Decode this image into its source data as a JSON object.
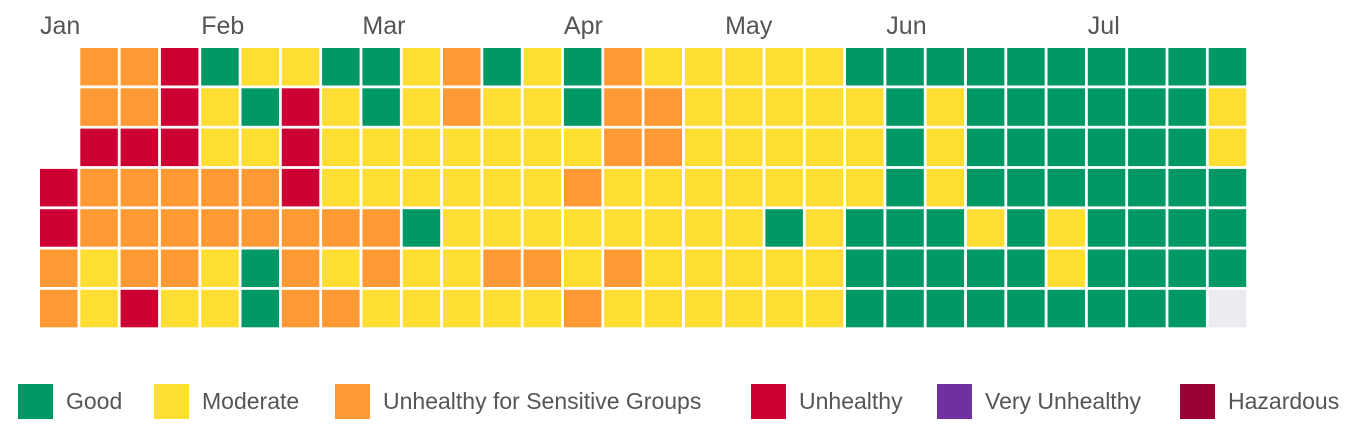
{
  "chart_data": {
    "type": "heatmap",
    "title": "",
    "layout": "calendar: one column per week, one row per weekday",
    "months": [
      "Jan",
      "Feb",
      "Mar",
      "Apr",
      "May",
      "Jun",
      "Jul"
    ],
    "month_start_week": [
      0,
      4,
      8,
      13,
      17,
      21,
      26
    ],
    "categories": [
      {
        "key": "G",
        "name": "Good",
        "color": "#009966"
      },
      {
        "key": "M",
        "name": "Moderate",
        "color": "#FFDE33"
      },
      {
        "key": "S",
        "name": "Unhealthy for Sensitive Groups",
        "color": "#FF9933"
      },
      {
        "key": "U",
        "name": "Unhealthy",
        "color": "#CC0033"
      },
      {
        "key": "V",
        "name": "Very Unhealthy",
        "color": "#7030A0"
      },
      {
        "key": "H",
        "name": "Hazardous",
        "color": "#990033"
      }
    ],
    "no_data_color": "#EBECEF",
    "weeks": [
      [
        "",
        "",
        "",
        "U",
        "U",
        "S",
        "S"
      ],
      [
        "S",
        "S",
        "U",
        "S",
        "S",
        "M",
        "M"
      ],
      [
        "S",
        "S",
        "U",
        "S",
        "S",
        "S",
        "U"
      ],
      [
        "U",
        "U",
        "U",
        "S",
        "S",
        "S",
        "M"
      ],
      [
        "G",
        "M",
        "M",
        "S",
        "S",
        "M",
        "M"
      ],
      [
        "M",
        "G",
        "M",
        "S",
        "S",
        "G",
        "G"
      ],
      [
        "M",
        "U",
        "U",
        "U",
        "S",
        "S",
        "S"
      ],
      [
        "G",
        "M",
        "M",
        "M",
        "S",
        "M",
        "S"
      ],
      [
        "G",
        "G",
        "M",
        "M",
        "S",
        "S",
        "M"
      ],
      [
        "M",
        "M",
        "M",
        "M",
        "G",
        "M",
        "M"
      ],
      [
        "S",
        "S",
        "M",
        "M",
        "M",
        "M",
        "M"
      ],
      [
        "G",
        "M",
        "M",
        "M",
        "M",
        "S",
        "M"
      ],
      [
        "M",
        "M",
        "M",
        "M",
        "M",
        "S",
        "M"
      ],
      [
        "G",
        "G",
        "M",
        "S",
        "M",
        "M",
        "S"
      ],
      [
        "S",
        "S",
        "S",
        "M",
        "M",
        "S",
        "M"
      ],
      [
        "M",
        "S",
        "S",
        "M",
        "M",
        "M",
        "M"
      ],
      [
        "M",
        "M",
        "M",
        "M",
        "M",
        "M",
        "M"
      ],
      [
        "M",
        "M",
        "M",
        "M",
        "M",
        "M",
        "M"
      ],
      [
        "M",
        "M",
        "M",
        "M",
        "G",
        "M",
        "M"
      ],
      [
        "M",
        "M",
        "M",
        "M",
        "M",
        "M",
        "M"
      ],
      [
        "G",
        "M",
        "M",
        "M",
        "G",
        "G",
        "G"
      ],
      [
        "G",
        "G",
        "G",
        "G",
        "G",
        "G",
        "G"
      ],
      [
        "G",
        "M",
        "M",
        "M",
        "G",
        "G",
        "G"
      ],
      [
        "G",
        "G",
        "G",
        "G",
        "M",
        "G",
        "G"
      ],
      [
        "G",
        "G",
        "G",
        "G",
        "G",
        "G",
        "G"
      ],
      [
        "G",
        "G",
        "G",
        "G",
        "M",
        "M",
        "G"
      ],
      [
        "G",
        "G",
        "G",
        "G",
        "G",
        "G",
        "G"
      ],
      [
        "G",
        "G",
        "G",
        "G",
        "G",
        "G",
        "G"
      ],
      [
        "G",
        "G",
        "G",
        "G",
        "G",
        "G",
        "G"
      ],
      [
        "G",
        "M",
        "M",
        "G",
        "G",
        "G",
        "N"
      ]
    ]
  }
}
